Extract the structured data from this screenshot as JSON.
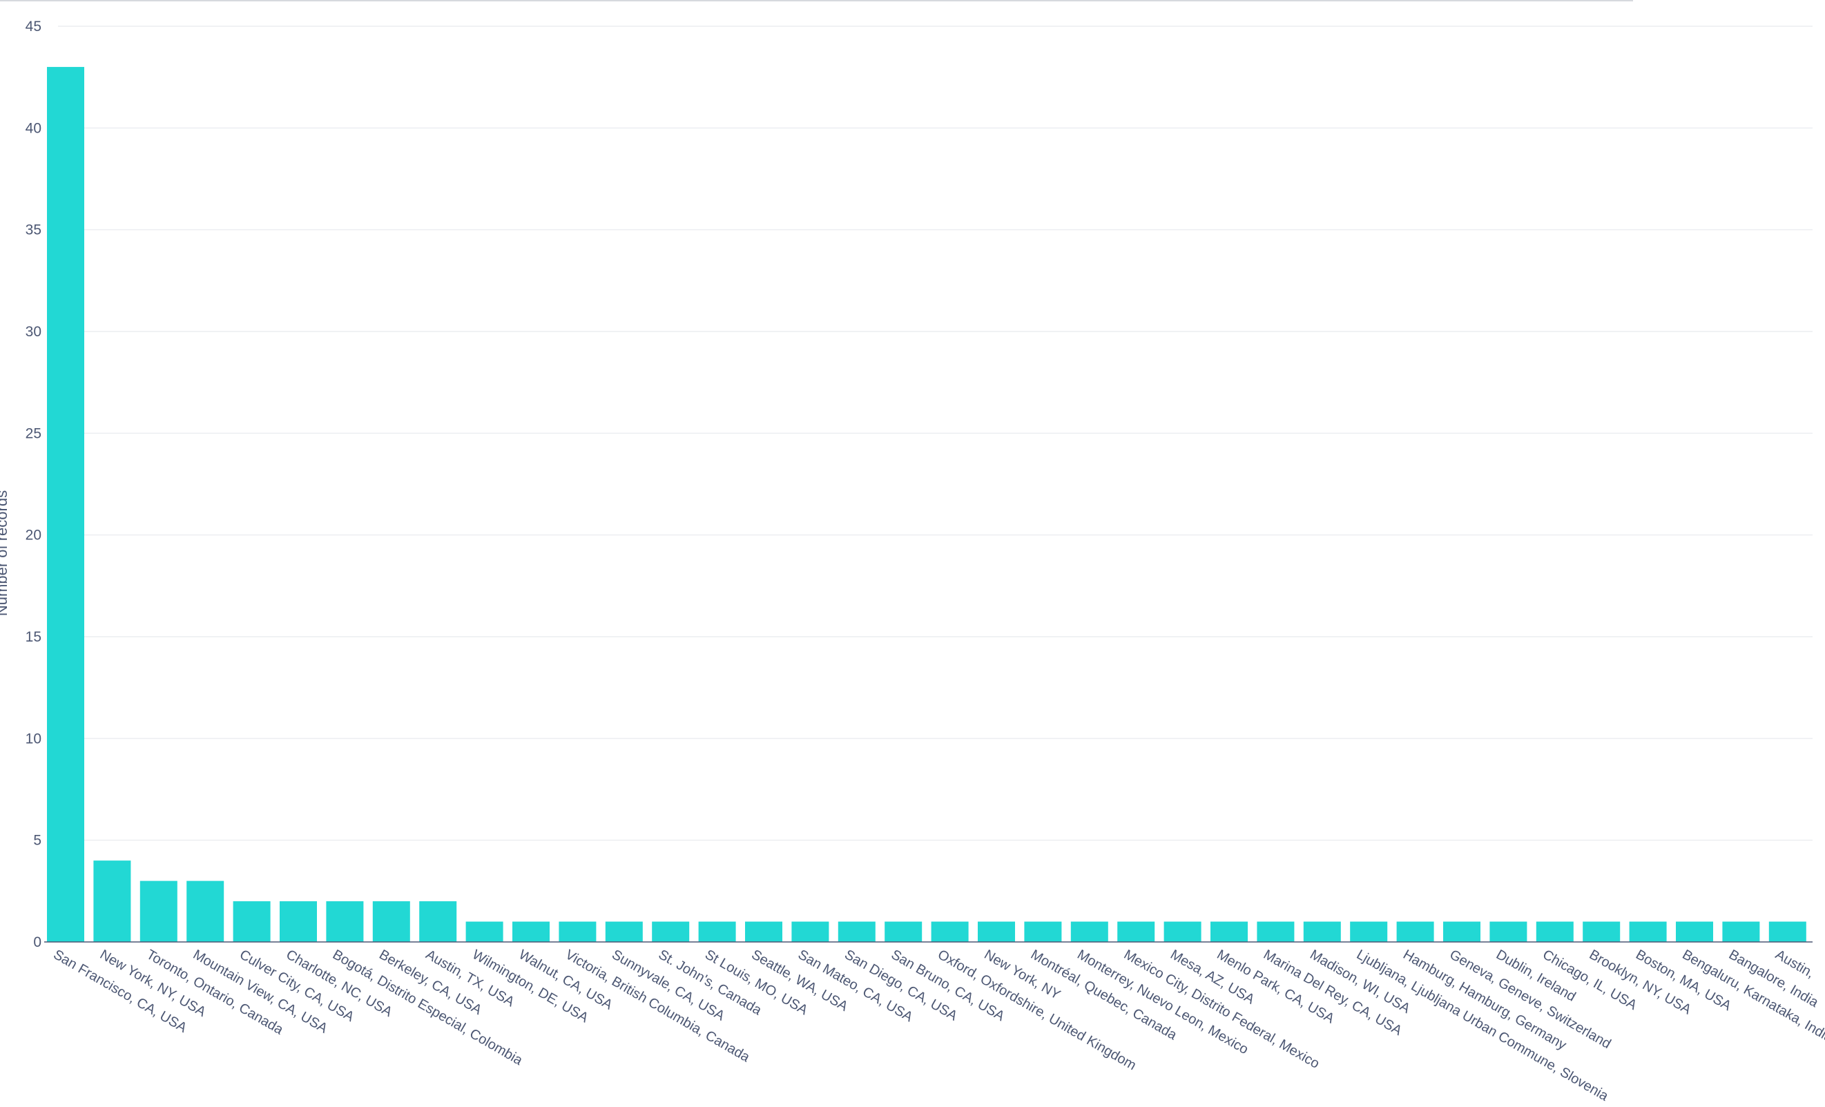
{
  "chart_data": {
    "type": "bar",
    "title": "",
    "xlabel": "",
    "ylabel": "Number of records",
    "ylim": [
      0,
      45
    ],
    "yticks": [
      0,
      5,
      10,
      15,
      20,
      25,
      30,
      35,
      40,
      45
    ],
    "grid": true,
    "legend": "none",
    "bar_color": "#22d8d4",
    "categories": [
      "San Francisco, CA, USA",
      "New York, NY, USA",
      "Toronto, Ontario, Canada",
      "Mountain View, CA, USA",
      "Culver City, CA, USA",
      "Charlotte, NC, USA",
      "Bogotá, Distrito Especial, Colombia",
      "Berkeley, CA, USA",
      "Austin, TX, USA",
      "Wilmington, DE, USA",
      "Walnut, CA, USA",
      "Victoria, British Columbia, Canada",
      "Sunnyvale, CA, USA",
      "St. John's, Canada",
      "St Louis, MO, USA",
      "Seattle, WA, USA",
      "San Mateo, CA, USA",
      "San Diego, CA, USA",
      "San Bruno, CA, USA",
      "Oxford, Oxfordshire, United Kingdom",
      "New York, NY",
      "Montréal, Quebec, Canada",
      "Monterrey, Nuevo Leon, Mexico",
      "Mexico City, Distrito Federal, Mexico",
      "Mesa, AZ, USA",
      "Menlo Park, CA, USA",
      "Marina Del Rey, CA, USA",
      "Madison, WI, USA",
      "Ljubljana, Ljubljana Urban Commune, Slovenia",
      "Hamburg, Hamburg, Germany",
      "Geneva, Geneve, Switzerland",
      "Dublin, Ireland",
      "Chicago, IL, USA",
      "Brooklyn, NY, USA",
      "Boston, MA, USA",
      "Bengaluru, Karnataka, India",
      "Bangalore, India",
      "Austin,"
    ],
    "values": [
      43,
      4,
      3,
      3,
      2,
      2,
      2,
      2,
      2,
      1,
      1,
      1,
      1,
      1,
      1,
      1,
      1,
      1,
      1,
      1,
      1,
      1,
      1,
      1,
      1,
      1,
      1,
      1,
      1,
      1,
      1,
      1,
      1,
      1,
      1,
      1,
      1,
      1
    ]
  }
}
